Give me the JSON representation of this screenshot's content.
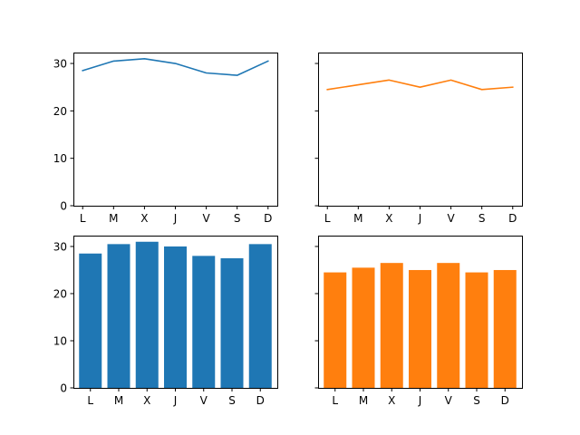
{
  "chart_data": [
    {
      "type": "line",
      "categories": [
        "L",
        "M",
        "X",
        "J",
        "V",
        "S",
        "D"
      ],
      "values": [
        28.5,
        30.5,
        31.0,
        30.0,
        28.0,
        27.5,
        30.5
      ],
      "color": "#1f77b4",
      "ylim": [
        0,
        32.3
      ],
      "yticks": [
        0,
        10,
        20,
        30
      ],
      "show_yticklabels": true,
      "grid": false
    },
    {
      "type": "line",
      "categories": [
        "L",
        "M",
        "X",
        "J",
        "V",
        "S",
        "D"
      ],
      "values": [
        24.5,
        25.5,
        26.5,
        25.0,
        26.5,
        24.5,
        25.0
      ],
      "color": "#ff7f0e",
      "ylim": [
        0,
        32.3
      ],
      "yticks": [
        0,
        10,
        20,
        30
      ],
      "show_yticklabels": false,
      "grid": false
    },
    {
      "type": "bar",
      "categories": [
        "L",
        "M",
        "X",
        "J",
        "V",
        "S",
        "D"
      ],
      "values": [
        28.5,
        30.5,
        31.0,
        30.0,
        28.0,
        27.5,
        30.5
      ],
      "color": "#1f77b4",
      "ylim": [
        0,
        32.3
      ],
      "yticks": [
        0,
        10,
        20,
        30
      ],
      "show_yticklabels": true,
      "grid": false
    },
    {
      "type": "bar",
      "categories": [
        "L",
        "M",
        "X",
        "J",
        "V",
        "S",
        "D"
      ],
      "values": [
        24.5,
        25.5,
        26.5,
        25.0,
        26.5,
        24.5,
        25.0
      ],
      "color": "#ff7f0e",
      "ylim": [
        0,
        32.3
      ],
      "yticks": [
        0,
        10,
        20,
        30
      ],
      "show_yticklabels": false,
      "grid": false
    }
  ]
}
